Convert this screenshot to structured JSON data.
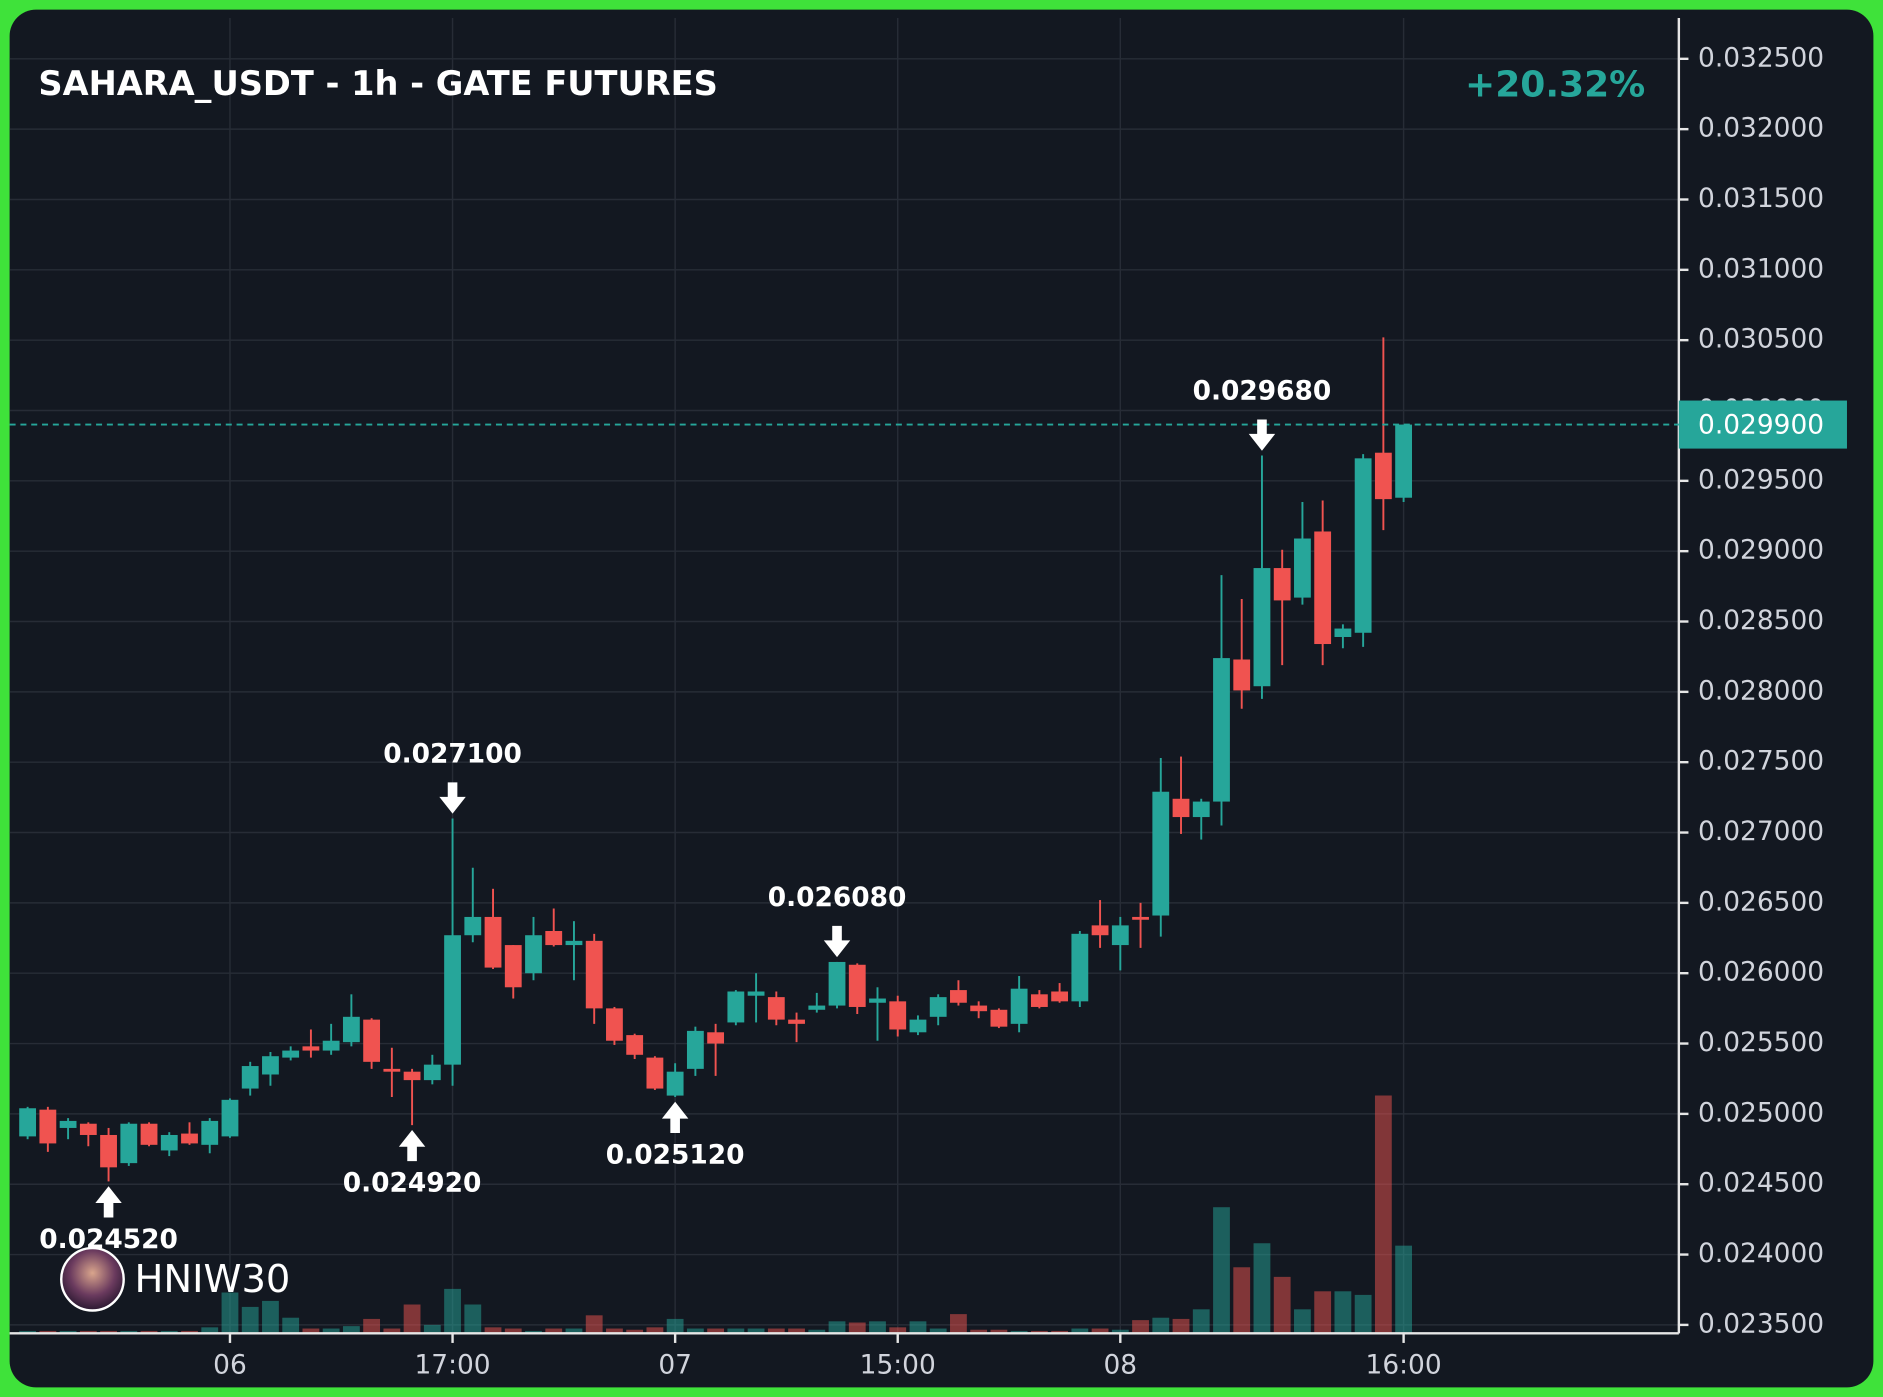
{
  "chart_data": {
    "type": "candlestick",
    "title": "SAHARA_USDT - 1h - GATE FUTURES",
    "change": "+20.32%",
    "watermark": "HNIW30",
    "up_color": "#26a69a",
    "down_color": "#f05350",
    "grid": true,
    "categories": [
      null,
      null,
      null,
      null,
      null,
      null,
      null,
      null,
      null,
      null,
      "06",
      null,
      null,
      null,
      null,
      null,
      null,
      null,
      null,
      null,
      null,
      "17:00",
      null,
      null,
      null,
      null,
      null,
      null,
      null,
      null,
      null,
      null,
      "07",
      null,
      null,
      null,
      null,
      null,
      null,
      null,
      null,
      null,
      null,
      "15:00",
      null,
      null,
      null,
      null,
      null,
      null,
      null,
      null,
      null,
      null,
      "08",
      null,
      null,
      null,
      null,
      null,
      null,
      null,
      null,
      null,
      null,
      null,
      null,
      null,
      "16:00"
    ],
    "open": [
      0.02484,
      0.02503,
      0.0249,
      0.02493,
      0.02485,
      0.02465,
      0.02493,
      0.02474,
      0.02486,
      0.02478,
      0.02484,
      0.02518,
      0.02528,
      0.0254,
      0.02548,
      0.02545,
      0.02551,
      0.02567,
      0.02532,
      0.0253,
      0.02524,
      0.02535,
      0.02627,
      0.0264,
      0.0262,
      0.026,
      0.0263,
      0.0262,
      0.02623,
      0.02575,
      0.02556,
      0.0254,
      0.02513,
      0.02532,
      0.02558,
      0.02565,
      0.02584,
      0.02583,
      0.02567,
      0.02574,
      0.02577,
      0.02606,
      0.02579,
      0.0258,
      0.02558,
      0.02569,
      0.02588,
      0.02577,
      0.02574,
      0.02564,
      0.02585,
      0.02587,
      0.0258,
      0.02634,
      0.0262,
      0.0264,
      0.02641,
      0.02724,
      0.02711,
      0.02722,
      0.02823,
      0.02804,
      0.02888,
      0.02867,
      0.02914,
      0.02839,
      0.02842,
      0.0297,
      0.02938
    ],
    "high": [
      0.02505,
      0.02505,
      0.02497,
      0.02494,
      0.0249,
      0.02494,
      0.02494,
      0.02487,
      0.02494,
      0.02497,
      0.02511,
      0.02537,
      0.02544,
      0.02548,
      0.0256,
      0.02564,
      0.02585,
      0.02568,
      0.02547,
      0.02532,
      0.02542,
      0.0271,
      0.02675,
      0.0266,
      0.0262,
      0.0264,
      0.02646,
      0.02637,
      0.02628,
      0.02576,
      0.02557,
      0.02541,
      0.02536,
      0.02562,
      0.02564,
      0.02588,
      0.026,
      0.02587,
      0.02572,
      0.02586,
      0.02608,
      0.02607,
      0.0259,
      0.02584,
      0.0257,
      0.02585,
      0.02595,
      0.0258,
      0.02575,
      0.02598,
      0.02588,
      0.02593,
      0.0263,
      0.02652,
      0.0264,
      0.0265,
      0.02753,
      0.02754,
      0.02724,
      0.02883,
      0.02866,
      0.02968,
      0.02901,
      0.02935,
      0.02936,
      0.02848,
      0.02969,
      0.03052,
      0.0299
    ],
    "low": [
      0.02482,
      0.02473,
      0.02482,
      0.02477,
      0.02452,
      0.02463,
      0.02477,
      0.0247,
      0.02478,
      0.02472,
      0.02483,
      0.02513,
      0.0252,
      0.02538,
      0.0254,
      0.02542,
      0.02548,
      0.02532,
      0.02512,
      0.02492,
      0.02521,
      0.0252,
      0.02622,
      0.02603,
      0.02582,
      0.02595,
      0.02619,
      0.02595,
      0.02564,
      0.02549,
      0.02539,
      0.02517,
      0.02512,
      0.02527,
      0.02527,
      0.02563,
      0.02565,
      0.02563,
      0.02551,
      0.02572,
      0.02575,
      0.02571,
      0.02552,
      0.02555,
      0.02556,
      0.02563,
      0.02577,
      0.02568,
      0.02561,
      0.02558,
      0.02575,
      0.02579,
      0.02576,
      0.02618,
      0.02602,
      0.02618,
      0.02626,
      0.02699,
      0.02695,
      0.02705,
      0.02788,
      0.02795,
      0.02819,
      0.02862,
      0.02819,
      0.02831,
      0.02832,
      0.02915,
      0.02935
    ],
    "close": [
      0.02504,
      0.02479,
      0.02495,
      0.02485,
      0.02462,
      0.02493,
      0.02478,
      0.02485,
      0.02479,
      0.02495,
      0.0251,
      0.02534,
      0.02541,
      0.02545,
      0.02545,
      0.02552,
      0.02569,
      0.02537,
      0.0253,
      0.02524,
      0.02535,
      0.02627,
      0.0264,
      0.02604,
      0.0259,
      0.02627,
      0.0262,
      0.02623,
      0.02575,
      0.02552,
      0.02542,
      0.02518,
      0.0253,
      0.02559,
      0.0255,
      0.02587,
      0.02587,
      0.02567,
      0.02564,
      0.02577,
      0.02608,
      0.02576,
      0.02582,
      0.0256,
      0.02567,
      0.02583,
      0.02579,
      0.02573,
      0.02562,
      0.02589,
      0.02576,
      0.0258,
      0.02628,
      0.02627,
      0.02634,
      0.02638,
      0.02729,
      0.02711,
      0.02722,
      0.02824,
      0.02801,
      0.02888,
      0.02865,
      0.02909,
      0.02834,
      0.02845,
      0.02966,
      0.02937,
      0.0299
    ],
    "volume": [
      2,
      2,
      2,
      2,
      2,
      2,
      2,
      2,
      2,
      5,
      34,
      22,
      27,
      13,
      4,
      4,
      6,
      12,
      4,
      24,
      7,
      37,
      24,
      5,
      4,
      2,
      4,
      4,
      15,
      4,
      3,
      5,
      12,
      4,
      4,
      4,
      4,
      4,
      4,
      3,
      10,
      9,
      10,
      5,
      10,
      4,
      16,
      3,
      3,
      2,
      2,
      2,
      4,
      4,
      3,
      11,
      13,
      12,
      20,
      105,
      55,
      75,
      47,
      20,
      35,
      35,
      32,
      198,
      73
    ],
    "ylim": [
      0.02344,
      0.03279
    ],
    "yticks": [
      {
        "value": 0.0235,
        "label": "0.023500"
      },
      {
        "value": 0.024,
        "label": "0.024000"
      },
      {
        "value": 0.0245,
        "label": "0.024500"
      },
      {
        "value": 0.025,
        "label": "0.025000"
      },
      {
        "value": 0.0255,
        "label": "0.025500"
      },
      {
        "value": 0.026,
        "label": "0.026000"
      },
      {
        "value": 0.0265,
        "label": "0.026500"
      },
      {
        "value": 0.027,
        "label": "0.027000"
      },
      {
        "value": 0.0275,
        "label": "0.027500"
      },
      {
        "value": 0.028,
        "label": "0.028000"
      },
      {
        "value": 0.0285,
        "label": "0.028500"
      },
      {
        "value": 0.029,
        "label": "0.029000"
      },
      {
        "value": 0.0295,
        "label": "0.029500"
      },
      {
        "value": 0.03,
        "label": "0.030000"
      },
      {
        "value": 0.0305,
        "label": "0.030500"
      },
      {
        "value": 0.031,
        "label": "0.031000"
      },
      {
        "value": 0.0315,
        "label": "0.031500"
      },
      {
        "value": 0.032,
        "label": "0.032000"
      },
      {
        "value": 0.0325,
        "label": "0.032500"
      }
    ],
    "last_price": {
      "value": 0.0299,
      "label": "0.029900"
    },
    "annotations": [
      {
        "candle": 4,
        "kind": "low",
        "value": 0.02452,
        "label": "0.024520"
      },
      {
        "candle": 19,
        "kind": "low",
        "value": 0.02492,
        "label": "0.024920"
      },
      {
        "candle": 21,
        "kind": "high",
        "value": 0.0271,
        "label": "0.027100"
      },
      {
        "candle": 32,
        "kind": "low",
        "value": 0.02512,
        "label": "0.025120"
      },
      {
        "candle": 40,
        "kind": "high",
        "value": 0.02608,
        "label": "0.026080"
      },
      {
        "candle": 61,
        "kind": "high",
        "value": 0.02968,
        "label": "0.029680"
      }
    ]
  }
}
